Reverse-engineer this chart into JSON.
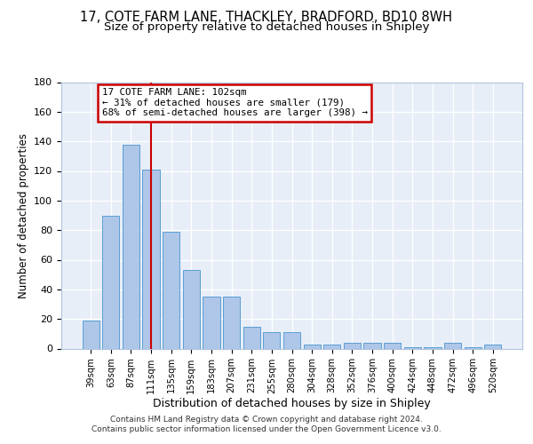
{
  "title": "17, COTE FARM LANE, THACKLEY, BRADFORD, BD10 8WH",
  "subtitle": "Size of property relative to detached houses in Shipley",
  "xlabel": "Distribution of detached houses by size in Shipley",
  "ylabel": "Number of detached properties",
  "categories": [
    "39sqm",
    "63sqm",
    "87sqm",
    "111sqm",
    "135sqm",
    "159sqm",
    "183sqm",
    "207sqm",
    "231sqm",
    "255sqm",
    "280sqm",
    "304sqm",
    "328sqm",
    "352sqm",
    "376sqm",
    "400sqm",
    "424sqm",
    "448sqm",
    "472sqm",
    "496sqm",
    "520sqm"
  ],
  "values": [
    19,
    90,
    138,
    121,
    79,
    53,
    35,
    35,
    15,
    11,
    11,
    3,
    3,
    4,
    4,
    4,
    1,
    1,
    4,
    1,
    3
  ],
  "bar_color": "#aec6e8",
  "bar_edge_color": "#5a9fd4",
  "vline_x": 3,
  "vline_color": "#cc0000",
  "annotation_line1": "17 COTE FARM LANE: 102sqm",
  "annotation_line2": "← 31% of detached houses are smaller (179)",
  "annotation_line3": "68% of semi-detached houses are larger (398) →",
  "annotation_box_color": "#cc0000",
  "ylim": [
    0,
    180
  ],
  "yticks": [
    0,
    20,
    40,
    60,
    80,
    100,
    120,
    140,
    160,
    180
  ],
  "bg_color": "#e8eef8",
  "grid_color": "#ffffff",
  "footer_line1": "Contains HM Land Registry data © Crown copyright and database right 2024.",
  "footer_line2": "Contains public sector information licensed under the Open Government Licence v3.0.",
  "title_fontsize": 10.5,
  "subtitle_fontsize": 9.5
}
